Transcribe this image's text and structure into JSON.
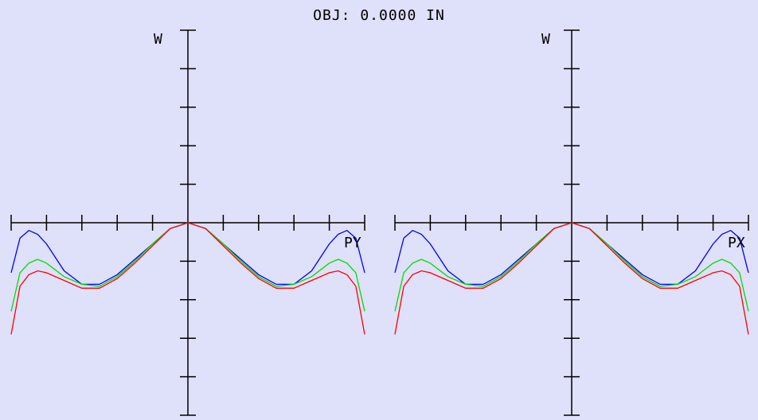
{
  "header": {
    "title": "OBJ: 0.0000 IN"
  },
  "colors": {
    "background": "#dfe0fa",
    "axes": "#000000"
  },
  "chart_data": [
    {
      "type": "line",
      "title": "",
      "xlabel": "PY",
      "ylabel": "W",
      "xlim": [
        -1,
        1
      ],
      "ylim": [
        -1,
        1
      ],
      "grid": false,
      "x_ticks": [
        -0.8,
        -0.6,
        -0.4,
        -0.2,
        0.2,
        0.4,
        0.6,
        0.8,
        1.0
      ],
      "y_ticks": [
        -0.8,
        -0.6,
        -0.4,
        -0.2,
        0.2,
        0.4,
        0.6,
        0.8
      ],
      "series": [
        {
          "color": "#0000ff",
          "x": [
            -1.0,
            -0.95,
            -0.9,
            -0.85,
            -0.8,
            -0.7,
            -0.6,
            -0.5,
            -0.4,
            -0.3,
            -0.2,
            -0.1,
            0.0,
            0.1,
            0.2,
            0.3,
            0.4,
            0.5,
            0.6,
            0.7,
            0.8,
            0.85,
            0.9,
            0.95,
            1.0
          ],
          "y": [
            -0.26,
            -0.08,
            -0.04,
            -0.06,
            -0.11,
            -0.25,
            -0.32,
            -0.32,
            -0.27,
            -0.19,
            -0.11,
            -0.03,
            0.0,
            -0.03,
            -0.11,
            -0.19,
            -0.27,
            -0.32,
            -0.32,
            -0.25,
            -0.11,
            -0.06,
            -0.04,
            -0.08,
            -0.26
          ]
        },
        {
          "color": "#00dd00",
          "x": [
            -1.0,
            -0.95,
            -0.9,
            -0.85,
            -0.8,
            -0.7,
            -0.6,
            -0.5,
            -0.4,
            -0.3,
            -0.2,
            -0.1,
            0.0,
            0.1,
            0.2,
            0.3,
            0.4,
            0.5,
            0.6,
            0.7,
            0.8,
            0.85,
            0.9,
            0.95,
            1.0
          ],
          "y": [
            -0.46,
            -0.26,
            -0.21,
            -0.19,
            -0.21,
            -0.28,
            -0.32,
            -0.33,
            -0.28,
            -0.2,
            -0.11,
            -0.03,
            0.0,
            -0.03,
            -0.11,
            -0.2,
            -0.28,
            -0.33,
            -0.32,
            -0.28,
            -0.21,
            -0.19,
            -0.21,
            -0.26,
            -0.46
          ]
        },
        {
          "color": "#ff0000",
          "x": [
            -1.0,
            -0.95,
            -0.9,
            -0.85,
            -0.8,
            -0.7,
            -0.6,
            -0.5,
            -0.4,
            -0.3,
            -0.2,
            -0.1,
            0.0,
            0.1,
            0.2,
            0.3,
            0.4,
            0.5,
            0.6,
            0.7,
            0.8,
            0.85,
            0.9,
            0.95,
            1.0
          ],
          "y": [
            -0.58,
            -0.33,
            -0.27,
            -0.25,
            -0.26,
            -0.3,
            -0.34,
            -0.34,
            -0.29,
            -0.21,
            -0.12,
            -0.03,
            0.0,
            -0.03,
            -0.12,
            -0.21,
            -0.29,
            -0.34,
            -0.34,
            -0.3,
            -0.26,
            -0.25,
            -0.27,
            -0.33,
            -0.58
          ]
        }
      ]
    },
    {
      "type": "line",
      "title": "",
      "xlabel": "PX",
      "ylabel": "W",
      "xlim": [
        -1,
        1
      ],
      "ylim": [
        -1,
        1
      ],
      "grid": false,
      "x_ticks": [
        -0.8,
        -0.6,
        -0.4,
        -0.2,
        0.2,
        0.4,
        0.6,
        0.8,
        1.0
      ],
      "y_ticks": [
        -0.8,
        -0.6,
        -0.4,
        -0.2,
        0.2,
        0.4,
        0.6,
        0.8
      ],
      "series": [
        {
          "color": "#0000ff",
          "x": [
            -1.0,
            -0.95,
            -0.9,
            -0.85,
            -0.8,
            -0.7,
            -0.6,
            -0.5,
            -0.4,
            -0.3,
            -0.2,
            -0.1,
            0.0,
            0.1,
            0.2,
            0.3,
            0.4,
            0.5,
            0.6,
            0.7,
            0.8,
            0.85,
            0.9,
            0.95,
            1.0
          ],
          "y": [
            -0.26,
            -0.08,
            -0.04,
            -0.06,
            -0.11,
            -0.25,
            -0.32,
            -0.32,
            -0.27,
            -0.19,
            -0.11,
            -0.03,
            0.0,
            -0.03,
            -0.11,
            -0.19,
            -0.27,
            -0.32,
            -0.32,
            -0.25,
            -0.11,
            -0.06,
            -0.04,
            -0.08,
            -0.26
          ]
        },
        {
          "color": "#00dd00",
          "x": [
            -1.0,
            -0.95,
            -0.9,
            -0.85,
            -0.8,
            -0.7,
            -0.6,
            -0.5,
            -0.4,
            -0.3,
            -0.2,
            -0.1,
            0.0,
            0.1,
            0.2,
            0.3,
            0.4,
            0.5,
            0.6,
            0.7,
            0.8,
            0.85,
            0.9,
            0.95,
            1.0
          ],
          "y": [
            -0.46,
            -0.26,
            -0.21,
            -0.19,
            -0.21,
            -0.28,
            -0.32,
            -0.33,
            -0.28,
            -0.2,
            -0.11,
            -0.03,
            0.0,
            -0.03,
            -0.11,
            -0.2,
            -0.28,
            -0.33,
            -0.32,
            -0.28,
            -0.21,
            -0.19,
            -0.21,
            -0.26,
            -0.46
          ]
        },
        {
          "color": "#ff0000",
          "x": [
            -1.0,
            -0.95,
            -0.9,
            -0.85,
            -0.8,
            -0.7,
            -0.6,
            -0.5,
            -0.4,
            -0.3,
            -0.2,
            -0.1,
            0.0,
            0.1,
            0.2,
            0.3,
            0.4,
            0.5,
            0.6,
            0.7,
            0.8,
            0.85,
            0.9,
            0.95,
            1.0
          ],
          "y": [
            -0.58,
            -0.33,
            -0.27,
            -0.25,
            -0.26,
            -0.3,
            -0.34,
            -0.34,
            -0.29,
            -0.21,
            -0.12,
            -0.03,
            0.0,
            -0.03,
            -0.12,
            -0.21,
            -0.29,
            -0.34,
            -0.34,
            -0.3,
            -0.26,
            -0.25,
            -0.27,
            -0.33,
            -0.58
          ]
        }
      ]
    }
  ]
}
